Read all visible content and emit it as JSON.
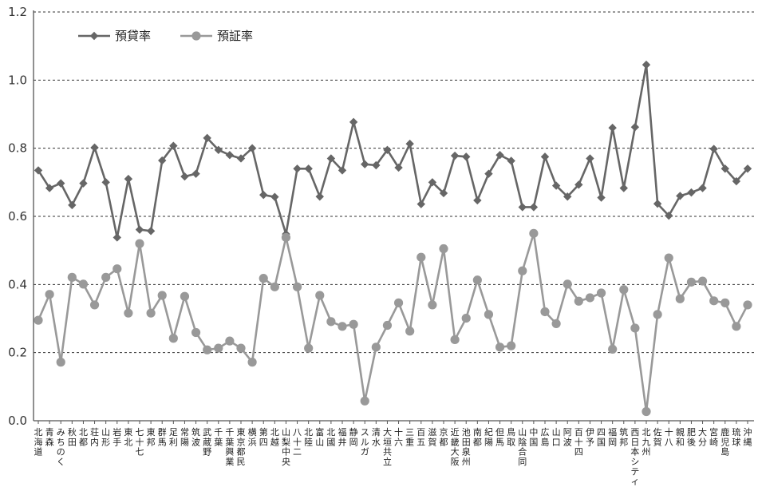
{
  "chart_data": {
    "type": "line",
    "categories": [
      "北海道",
      "青森",
      "みちのく",
      "秋田",
      "北都",
      "荘内",
      "山形",
      "岩手",
      "東北",
      "七十七",
      "東邦",
      "群馬",
      "足利",
      "常陽",
      "筑波",
      "武蔵野",
      "千葉",
      "千葉興業",
      "東京都民",
      "横浜",
      "第四",
      "北越",
      "山梨中央",
      "八十二",
      "北陸",
      "富山",
      "北國",
      "福井",
      "静岡",
      "スルガ",
      "清水",
      "大垣共立",
      "十六",
      "三重",
      "百五",
      "滋賀",
      "京都",
      "近畿大阪",
      "池田泉州",
      "南都",
      "紀陽",
      "但馬",
      "鳥取",
      "山陰合同",
      "中国",
      "広島",
      "山口",
      "阿波",
      "百十四",
      "伊予",
      "四国",
      "福岡",
      "筑邦",
      "西日本シティ",
      "北九州",
      "佐賀",
      "十八",
      "親和",
      "肥後",
      "大分",
      "宮崎",
      "鹿児島",
      "琉球",
      "沖縄"
    ],
    "series": [
      {
        "name": "預貸率",
        "color": "#666666",
        "marker": "diamond",
        "values": [
          0.735,
          0.683,
          0.697,
          0.633,
          0.697,
          0.802,
          0.7,
          0.538,
          0.71,
          0.561,
          0.557,
          0.764,
          0.807,
          0.717,
          0.725,
          0.83,
          0.795,
          0.78,
          0.77,
          0.8,
          0.663,
          0.657,
          0.548,
          0.74,
          0.74,
          0.658,
          0.77,
          0.735,
          0.877,
          0.753,
          0.75,
          0.795,
          0.743,
          0.813,
          0.636,
          0.7,
          0.668,
          0.778,
          0.775,
          0.647,
          0.725,
          0.78,
          0.763,
          0.627,
          0.627,
          0.775,
          0.69,
          0.658,
          0.693,
          0.77,
          0.655,
          0.86,
          0.683,
          0.862,
          1.045,
          0.637,
          0.602,
          0.66,
          0.67,
          0.683,
          0.798,
          0.74,
          0.703,
          0.74
        ]
      },
      {
        "name": "預証率",
        "color": "#999999",
        "marker": "circle",
        "values": [
          0.295,
          0.371,
          0.172,
          0.421,
          0.401,
          0.34,
          0.421,
          0.446,
          0.316,
          0.52,
          0.316,
          0.368,
          0.242,
          0.365,
          0.259,
          0.208,
          0.213,
          0.234,
          0.213,
          0.172,
          0.418,
          0.393,
          0.538,
          0.393,
          0.213,
          0.368,
          0.291,
          0.277,
          0.283,
          0.058,
          0.216,
          0.28,
          0.346,
          0.263,
          0.48,
          0.34,
          0.505,
          0.238,
          0.301,
          0.413,
          0.312,
          0.216,
          0.22,
          0.44,
          0.55,
          0.32,
          0.285,
          0.401,
          0.351,
          0.361,
          0.375,
          0.21,
          0.385,
          0.272,
          0.027,
          0.312,
          0.478,
          0.358,
          0.407,
          0.41,
          0.352,
          0.346,
          0.277,
          0.34
        ]
      }
    ],
    "ylim": [
      0,
      1.2
    ],
    "yticks": [
      "0.0",
      "0.2",
      "0.4",
      "0.6",
      "0.8",
      "1.0",
      "1.2"
    ],
    "grid": "horizontal-dashed",
    "legend_position": "top-left"
  }
}
